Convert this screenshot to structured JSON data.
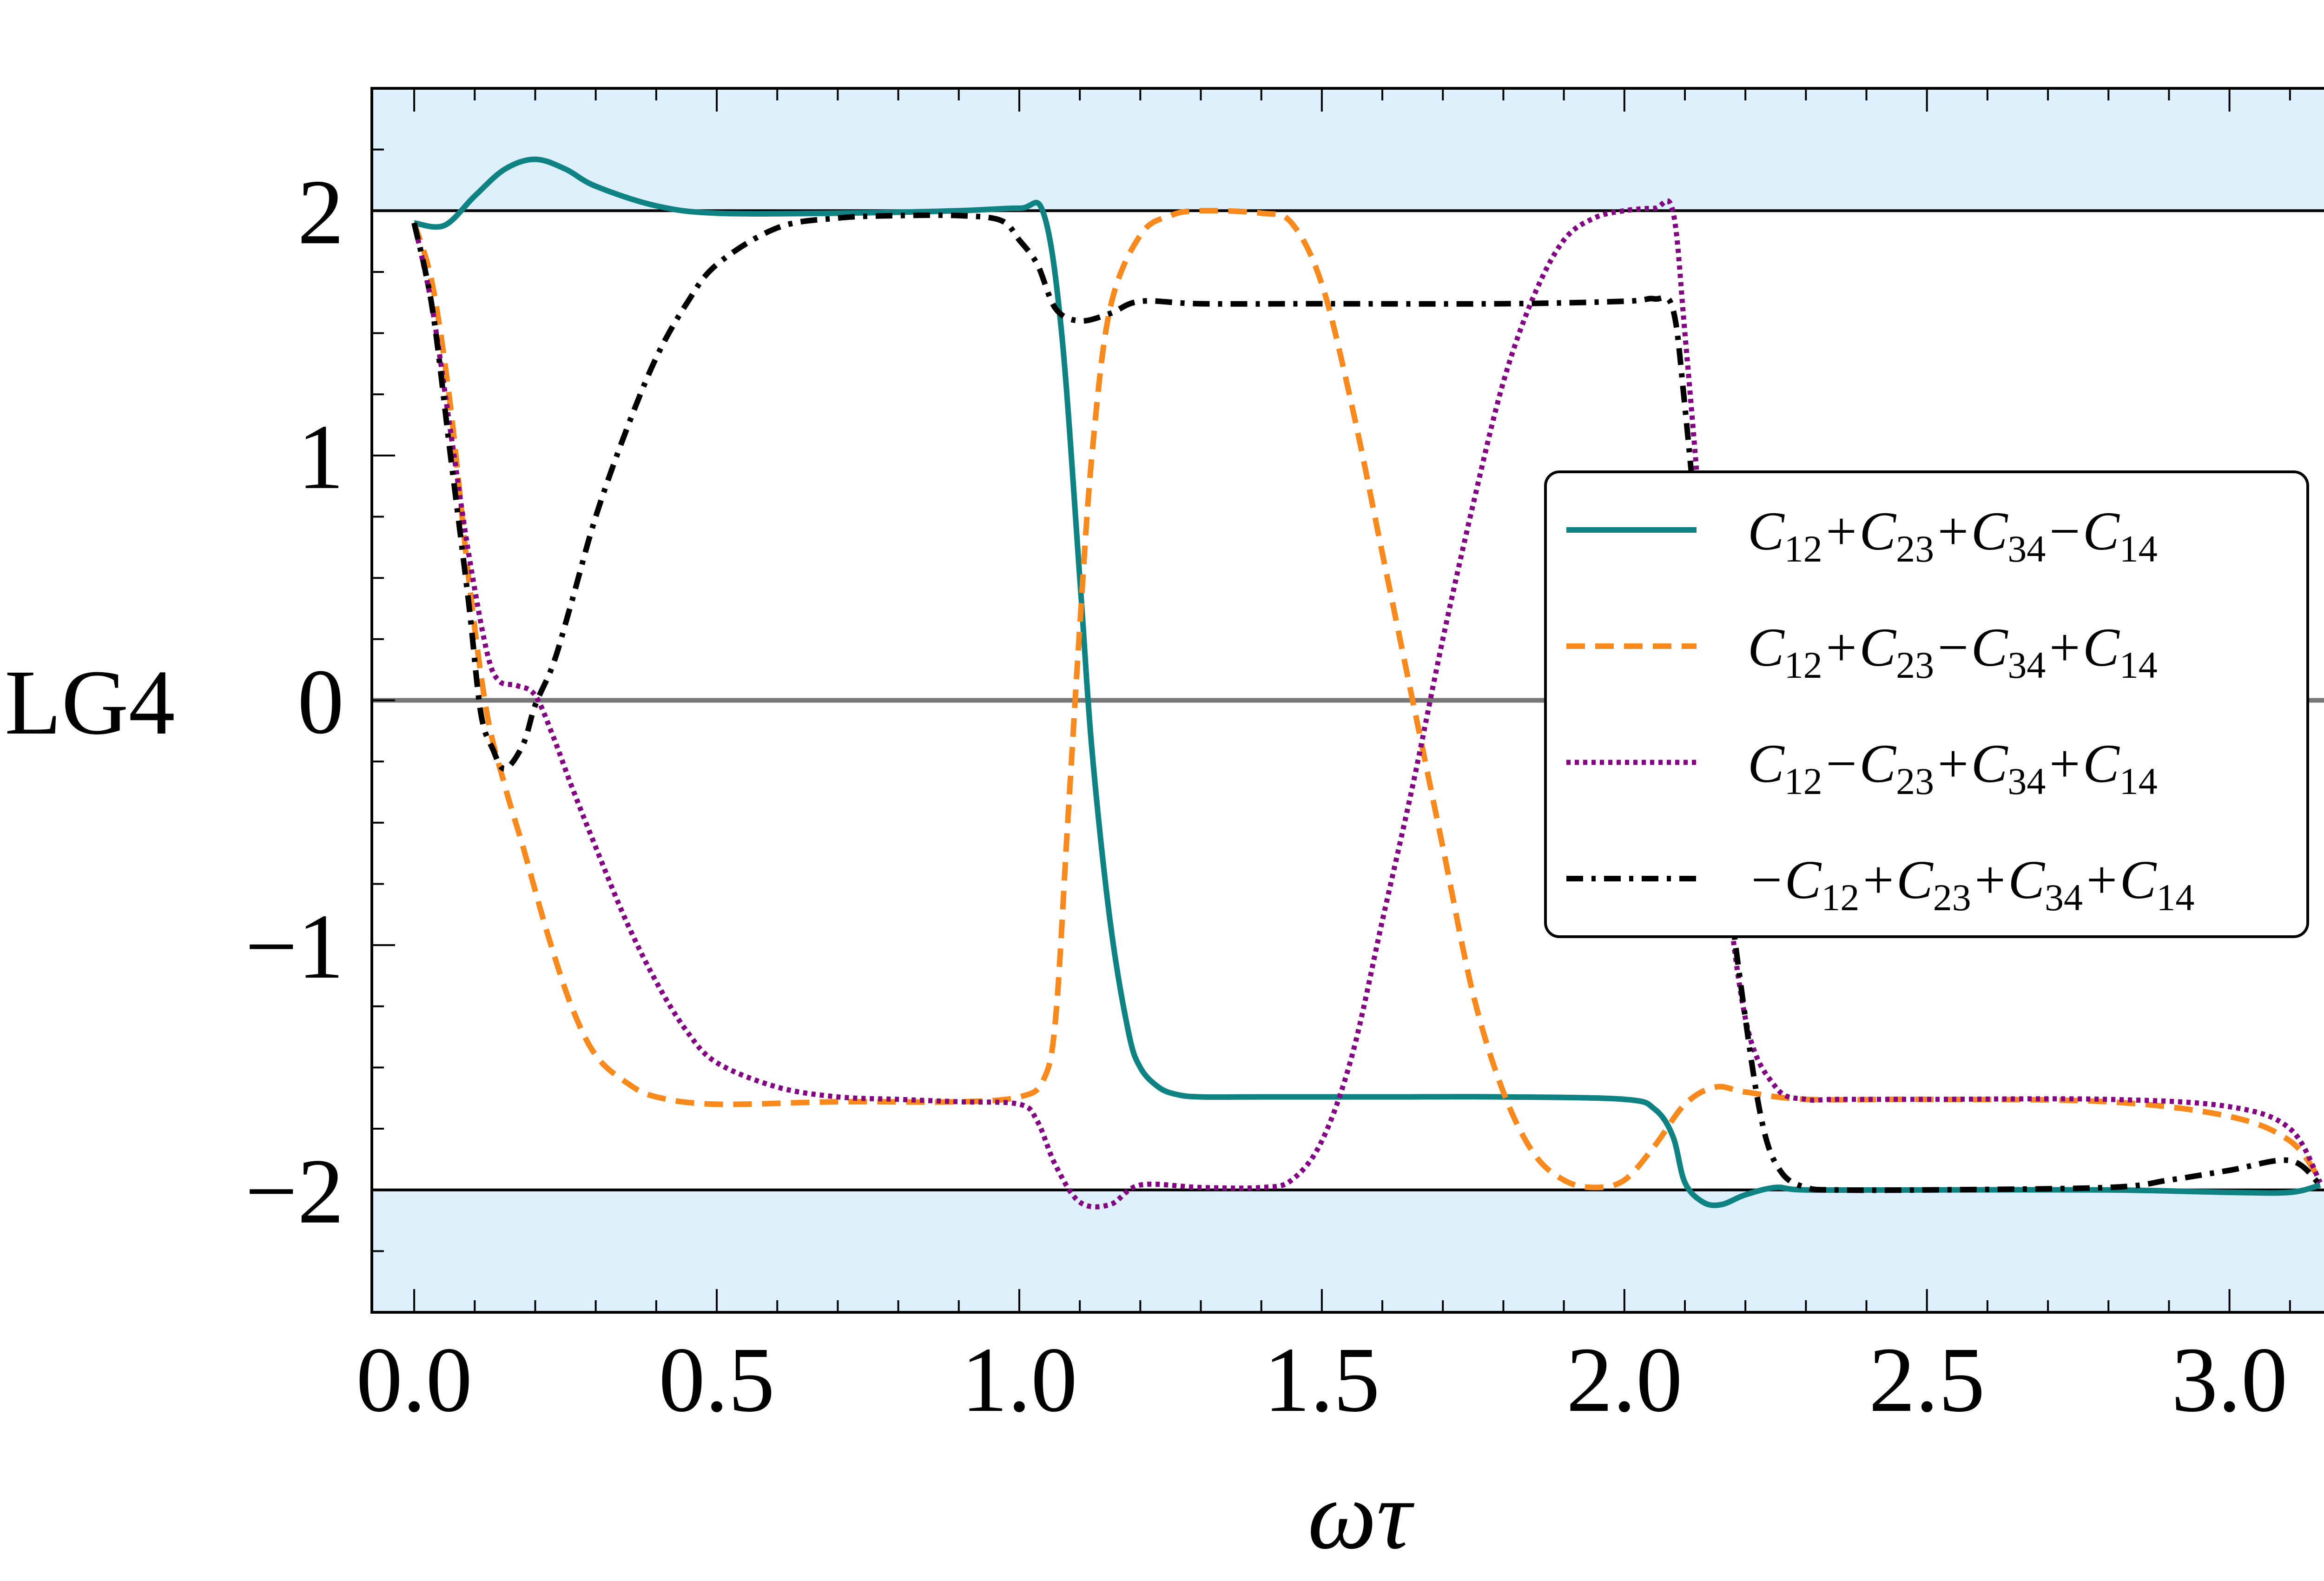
{
  "chart_data": {
    "type": "line",
    "title": "",
    "xlabel": "ωτ",
    "ylabel": "LG4",
    "xlim": [
      -0.07,
      3.2
    ],
    "ylim": [
      -2.5,
      2.5
    ],
    "xticks": [
      0.0,
      0.5,
      1.0,
      1.5,
      2.0,
      2.5,
      3.0
    ],
    "xtick_labels": [
      "0.0",
      "0.5",
      "1.0",
      "1.5",
      "2.0",
      "2.5",
      "3.0"
    ],
    "yticks": [
      -2,
      -1,
      0,
      1,
      2
    ],
    "ytick_labels": [
      "−2",
      "−1",
      "0",
      "1",
      "2"
    ],
    "shaded_regions": [
      {
        "from": 2,
        "to": 2.5,
        "color": "#dff0fd"
      },
      {
        "from": -2.5,
        "to": -2,
        "color": "#dff0fd"
      }
    ],
    "reference_lines": [
      {
        "y": 2,
        "color": "#000000"
      },
      {
        "y": -2,
        "color": "#000000"
      },
      {
        "y": 0,
        "color": "#777777"
      }
    ],
    "legend_position": "center-right",
    "series": [
      {
        "name": "C12+C23+C34−C14",
        "label_parts": [
          "C",
          "12",
          "+C",
          "23",
          "+C",
          "34",
          "−C",
          "14"
        ],
        "color": "#0f8383",
        "dash": "solid",
        "x": [
          0.0,
          0.05,
          0.1,
          0.15,
          0.2,
          0.25,
          0.3,
          0.4,
          0.5,
          0.7,
          0.9,
          1.0,
          1.04,
          1.07,
          1.1,
          1.12,
          1.15,
          1.18,
          1.2,
          1.23,
          1.26,
          1.3,
          1.4,
          1.6,
          1.8,
          2.0,
          2.05,
          2.08,
          2.1,
          2.13,
          2.16,
          2.2,
          2.25,
          2.3,
          2.5,
          2.8,
          3.0,
          3.1,
          3.15
        ],
        "y": [
          1.95,
          1.94,
          2.06,
          2.17,
          2.21,
          2.17,
          2.1,
          2.02,
          1.99,
          1.99,
          2.0,
          2.01,
          1.99,
          1.5,
          0.5,
          -0.2,
          -0.9,
          -1.35,
          -1.5,
          -1.58,
          -1.61,
          -1.62,
          -1.62,
          -1.62,
          -1.62,
          -1.63,
          -1.67,
          -1.78,
          -1.97,
          -2.05,
          -2.06,
          -2.02,
          -1.99,
          -2.0,
          -2.0,
          -2.0,
          -2.01,
          -2.01,
          -1.98
        ]
      },
      {
        "name": "C12+C23−C34+C14",
        "label_parts": [
          "C",
          "12",
          "+C",
          "23",
          "−C",
          "34",
          "+C",
          "14"
        ],
        "color": "#f7891d",
        "dash": "dashed",
        "x": [
          0.0,
          0.03,
          0.06,
          0.09,
          0.12,
          0.15,
          0.18,
          0.22,
          0.26,
          0.3,
          0.35,
          0.4,
          0.5,
          0.7,
          0.9,
          1.0,
          1.04,
          1.06,
          1.08,
          1.1,
          1.12,
          1.15,
          1.2,
          1.25,
          1.3,
          1.4,
          1.45,
          1.5,
          1.55,
          1.6,
          1.65,
          1.7,
          1.75,
          1.8,
          1.85,
          1.9,
          1.95,
          2.0,
          2.05,
          2.1,
          2.15,
          2.2,
          2.3,
          2.5,
          2.8,
          3.0,
          3.1,
          3.15
        ],
        "y": [
          1.95,
          1.7,
          1.2,
          0.5,
          -0.05,
          -0.35,
          -0.6,
          -0.95,
          -1.25,
          -1.45,
          -1.56,
          -1.62,
          -1.65,
          -1.64,
          -1.64,
          -1.62,
          -1.55,
          -1.3,
          -0.5,
          0.3,
          1.0,
          1.6,
          1.9,
          1.98,
          2.0,
          1.99,
          1.95,
          1.7,
          1.2,
          0.6,
          0.0,
          -0.6,
          -1.2,
          -1.6,
          -1.85,
          -1.96,
          -1.99,
          -1.96,
          -1.82,
          -1.65,
          -1.58,
          -1.6,
          -1.63,
          -1.63,
          -1.64,
          -1.7,
          -1.8,
          -1.96
        ]
      },
      {
        "name": "C12−C23+C34+C14",
        "label_parts": [
          "C",
          "12",
          "−C",
          "23",
          "+C",
          "34",
          "+C",
          "14"
        ],
        "color": "#830583",
        "dash": "dotted",
        "x": [
          0.0,
          0.03,
          0.06,
          0.09,
          0.12,
          0.14,
          0.17,
          0.2,
          0.23,
          0.26,
          0.3,
          0.35,
          0.4,
          0.45,
          0.5,
          0.6,
          0.7,
          0.8,
          0.9,
          1.0,
          1.03,
          1.06,
          1.1,
          1.15,
          1.2,
          1.3,
          1.4,
          1.45,
          1.5,
          1.55,
          1.6,
          1.65,
          1.7,
          1.75,
          1.8,
          1.85,
          1.9,
          1.95,
          2.0,
          2.05,
          2.08,
          2.1,
          2.13,
          2.16,
          2.2,
          2.25,
          2.3,
          2.35,
          2.5,
          2.8,
          3.0,
          3.1,
          3.15
        ],
        "y": [
          1.95,
          1.6,
          1.1,
          0.6,
          0.2,
          0.08,
          0.06,
          0.02,
          -0.15,
          -0.35,
          -0.6,
          -0.9,
          -1.15,
          -1.35,
          -1.48,
          -1.58,
          -1.62,
          -1.63,
          -1.64,
          -1.65,
          -1.72,
          -1.9,
          -2.05,
          -2.06,
          -1.98,
          -1.99,
          -1.99,
          -1.96,
          -1.8,
          -1.45,
          -0.9,
          -0.35,
          0.25,
          0.8,
          1.3,
          1.65,
          1.88,
          1.97,
          2.0,
          2.01,
          2.0,
          1.5,
          0.6,
          -0.5,
          -1.3,
          -1.58,
          -1.63,
          -1.63,
          -1.63,
          -1.63,
          -1.66,
          -1.75,
          -1.97
        ]
      },
      {
        "name": "−C12+C23+C34+C14",
        "label_parts": [
          "−C",
          "12",
          "+C",
          "23",
          "+C",
          "34",
          "+C",
          "14"
        ],
        "color": "#000000",
        "dash": "dashdot",
        "x": [
          0.0,
          0.03,
          0.06,
          0.09,
          0.11,
          0.13,
          0.15,
          0.18,
          0.2,
          0.23,
          0.26,
          0.3,
          0.35,
          0.4,
          0.45,
          0.5,
          0.6,
          0.7,
          0.8,
          0.9,
          0.97,
          1.0,
          1.03,
          1.06,
          1.1,
          1.15,
          1.2,
          1.3,
          1.5,
          1.8,
          2.0,
          2.05,
          2.08,
          2.1,
          2.13,
          2.16,
          2.2,
          2.23,
          2.26,
          2.3,
          2.35,
          2.5,
          2.8,
          2.9,
          3.0,
          3.1,
          3.15
        ],
        "y": [
          1.95,
          1.6,
          1.0,
          0.4,
          -0.05,
          -0.2,
          -0.28,
          -0.18,
          -0.02,
          0.15,
          0.4,
          0.75,
          1.1,
          1.4,
          1.62,
          1.78,
          1.93,
          1.97,
          1.98,
          1.98,
          1.96,
          1.88,
          1.78,
          1.6,
          1.55,
          1.58,
          1.63,
          1.62,
          1.62,
          1.62,
          1.63,
          1.64,
          1.6,
          1.2,
          0.4,
          -0.5,
          -1.3,
          -1.75,
          -1.93,
          -1.99,
          -2.0,
          -2.0,
          -1.99,
          -1.96,
          -1.92,
          -1.88,
          -1.98
        ]
      }
    ]
  }
}
